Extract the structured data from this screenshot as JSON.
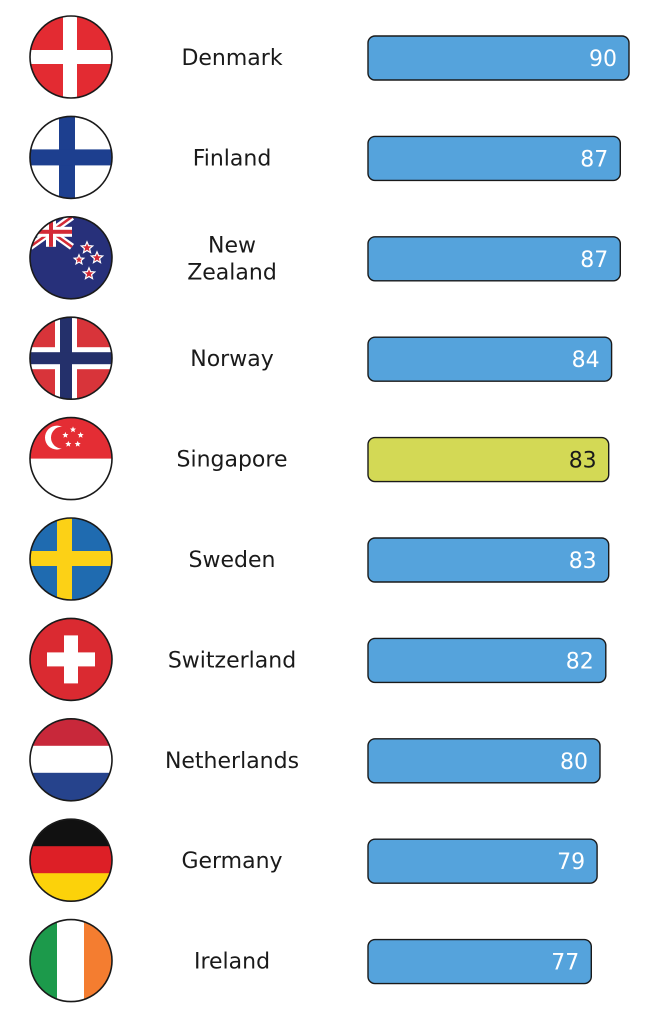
{
  "chart_data": {
    "type": "bar",
    "orientation": "horizontal",
    "categories": [
      "Denmark",
      "Finland",
      "New Zealand",
      "Norway",
      "Singapore",
      "Sweden",
      "Switzerland",
      "Netherlands",
      "Germany",
      "Ireland"
    ],
    "category_lines": [
      [
        "Denmark"
      ],
      [
        "Finland"
      ],
      [
        "New",
        "Zealand"
      ],
      [
        "Norway"
      ],
      [
        "Singapore"
      ],
      [
        "Sweden"
      ],
      [
        "Switzerland"
      ],
      [
        "Netherlands"
      ],
      [
        "Germany"
      ],
      [
        "Ireland"
      ]
    ],
    "values": [
      90,
      87,
      87,
      84,
      83,
      83,
      82,
      80,
      79,
      77
    ],
    "flags": [
      "denmark-flag",
      "finland-flag",
      "new-zealand-flag",
      "norway-flag",
      "singapore-flag",
      "sweden-flag",
      "switzerland-flag",
      "netherlands-flag",
      "germany-flag",
      "ireland-flag"
    ],
    "highlight": "Singapore",
    "title": "",
    "xlabel": "",
    "ylabel": "",
    "colors": {
      "bar": "#55a3dc",
      "highlight_bar": "#d3d955",
      "bar_text": "#ffffff",
      "highlight_text": "#1a1a1a",
      "label_text": "#1a1a1a"
    }
  }
}
